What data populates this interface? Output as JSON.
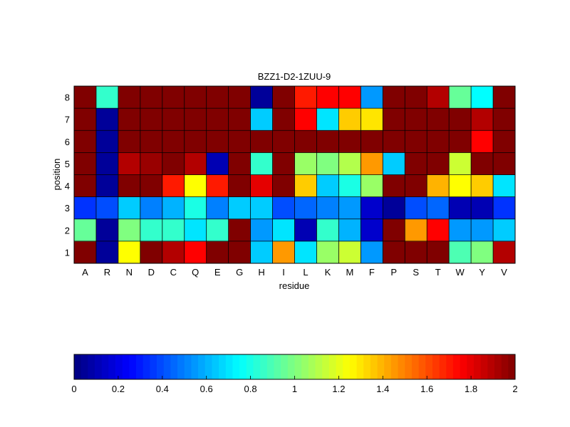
{
  "chart_data": {
    "type": "heatmap",
    "title": "BZZ1-D2-1ZUU-9",
    "xlabel": "residue",
    "ylabel": "position",
    "x_categories": [
      "A",
      "R",
      "N",
      "D",
      "C",
      "Q",
      "E",
      "G",
      "H",
      "I",
      "L",
      "K",
      "M",
      "F",
      "P",
      "S",
      "T",
      "W",
      "Y",
      "V"
    ],
    "y_categories": [
      "1",
      "2",
      "3",
      "4",
      "5",
      "6",
      "7",
      "8"
    ],
    "colormap": "jet",
    "clim": [
      0,
      2
    ],
    "colorbar_ticks": [
      "0",
      "0.2",
      "0.4",
      "0.6",
      "0.8",
      "1",
      "1.2",
      "1.4",
      "1.6",
      "1.8",
      "2"
    ],
    "values": [
      [
        2.0,
        0.05,
        1.25,
        2.0,
        1.9,
        1.75,
        2.0,
        2.0,
        0.65,
        1.45,
        0.7,
        1.05,
        1.15,
        0.55,
        2.0,
        2.0,
        2.0,
        0.9,
        1.0,
        1.9
      ],
      [
        0.95,
        0.05,
        1.0,
        0.85,
        0.85,
        0.7,
        0.85,
        2.0,
        0.55,
        0.7,
        0.1,
        0.85,
        0.6,
        0.15,
        2.0,
        1.45,
        1.75,
        0.55,
        0.55,
        0.65
      ],
      [
        0.35,
        0.4,
        0.65,
        0.5,
        0.6,
        0.8,
        0.5,
        0.65,
        0.65,
        0.4,
        0.45,
        0.5,
        0.55,
        0.15,
        0.05,
        0.4,
        0.45,
        0.1,
        0.1,
        0.35
      ],
      [
        2.0,
        0.05,
        2.0,
        2.0,
        1.7,
        1.25,
        1.7,
        2.0,
        1.8,
        2.0,
        1.35,
        0.65,
        0.8,
        1.05,
        2.0,
        2.0,
        1.4,
        1.25,
        1.35,
        0.7
      ],
      [
        2.0,
        0.05,
        1.9,
        1.95,
        2.0,
        1.9,
        0.1,
        2.0,
        0.85,
        2.0,
        1.05,
        1.0,
        1.1,
        1.45,
        0.65,
        2.0,
        2.0,
        1.15,
        2.0,
        2.0
      ],
      [
        2.0,
        0.05,
        2.0,
        2.0,
        2.0,
        2.0,
        2.0,
        2.0,
        2.0,
        2.0,
        2.0,
        2.0,
        2.0,
        2.0,
        2.0,
        2.0,
        2.0,
        2.0,
        1.75,
        2.0
      ],
      [
        2.0,
        0.05,
        2.0,
        2.0,
        2.0,
        2.0,
        2.0,
        2.0,
        0.65,
        2.0,
        1.75,
        0.7,
        1.35,
        1.3,
        2.0,
        2.0,
        2.0,
        2.0,
        1.9,
        2.0
      ],
      [
        2.0,
        0.85,
        2.0,
        2.0,
        2.0,
        2.0,
        2.0,
        2.0,
        0.05,
        2.0,
        1.7,
        1.75,
        1.75,
        0.55,
        2.0,
        2.0,
        1.9,
        0.95,
        0.75,
        2.0
      ]
    ]
  }
}
